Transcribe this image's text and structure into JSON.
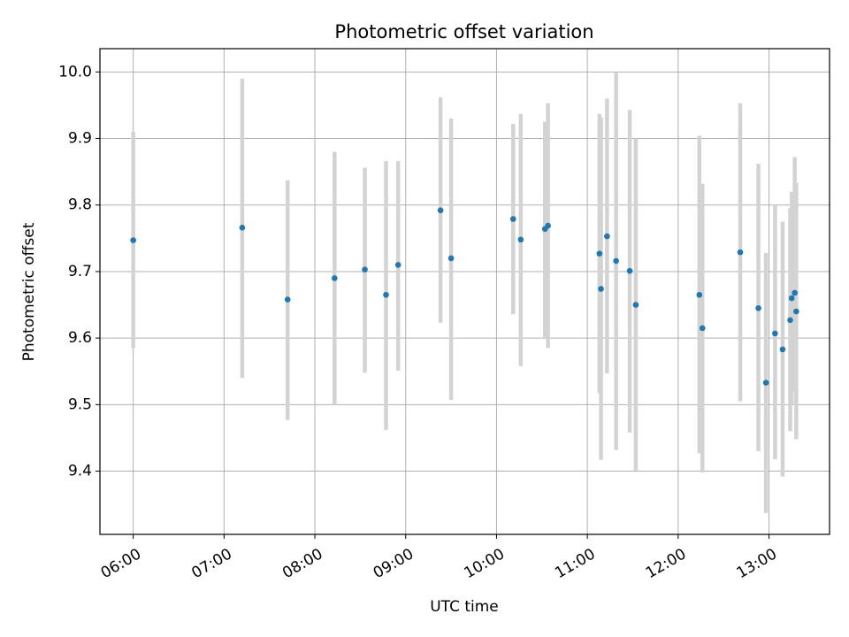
{
  "chart_data": {
    "type": "scatter",
    "title": "Photometric offset variation",
    "xlabel": "UTC time",
    "ylabel": "Photometric offset",
    "x_ticks": [
      "06:00",
      "07:00",
      "08:00",
      "09:00",
      "10:00",
      "11:00",
      "12:00",
      "13:00"
    ],
    "y_ticks": [
      "9.4",
      "9.5",
      "9.6",
      "9.7",
      "9.8",
      "9.9",
      "10.0"
    ],
    "xlim": [
      "05:38",
      "13:40"
    ],
    "ylim": [
      9.305,
      10.035
    ],
    "grid": true,
    "colors": {
      "point": "#1f77b4",
      "errorbar": "#d3d3d3",
      "grid": "#b0b0b0"
    },
    "points": [
      {
        "x": "06:00",
        "y": 9.747,
        "ylow": 9.585,
        "yhigh": 9.91
      },
      {
        "x": "07:12",
        "y": 9.766,
        "ylow": 9.54,
        "yhigh": 9.99
      },
      {
        "x": "07:42",
        "y": 9.658,
        "ylow": 9.477,
        "yhigh": 9.837
      },
      {
        "x": "08:13",
        "y": 9.69,
        "ylow": 9.5,
        "yhigh": 9.88
      },
      {
        "x": "08:33",
        "y": 9.703,
        "ylow": 9.548,
        "yhigh": 9.856
      },
      {
        "x": "08:47",
        "y": 9.665,
        "ylow": 9.462,
        "yhigh": 9.866
      },
      {
        "x": "08:55",
        "y": 9.71,
        "ylow": 9.551,
        "yhigh": 9.866
      },
      {
        "x": "09:23",
        "y": 9.792,
        "ylow": 9.623,
        "yhigh": 9.962
      },
      {
        "x": "09:30",
        "y": 9.72,
        "ylow": 9.507,
        "yhigh": 9.93
      },
      {
        "x": "10:11",
        "y": 9.779,
        "ylow": 9.636,
        "yhigh": 9.922
      },
      {
        "x": "10:16",
        "y": 9.748,
        "ylow": 9.558,
        "yhigh": 9.937
      },
      {
        "x": "10:32",
        "y": 9.764,
        "ylow": 9.6,
        "yhigh": 9.925
      },
      {
        "x": "10:34",
        "y": 9.769,
        "ylow": 9.585,
        "yhigh": 9.953
      },
      {
        "x": "11:08",
        "y": 9.727,
        "ylow": 9.517,
        "yhigh": 9.937
      },
      {
        "x": "11:09",
        "y": 9.674,
        "ylow": 9.417,
        "yhigh": 9.932
      },
      {
        "x": "11:13",
        "y": 9.753,
        "ylow": 9.547,
        "yhigh": 9.96
      },
      {
        "x": "11:19",
        "y": 9.716,
        "ylow": 9.432,
        "yhigh": 10.0
      },
      {
        "x": "11:28",
        "y": 9.701,
        "ylow": 9.458,
        "yhigh": 9.943
      },
      {
        "x": "11:32",
        "y": 9.65,
        "ylow": 9.401,
        "yhigh": 9.9
      },
      {
        "x": "12:14",
        "y": 9.665,
        "ylow": 9.427,
        "yhigh": 9.904
      },
      {
        "x": "12:16",
        "y": 9.615,
        "ylow": 9.398,
        "yhigh": 9.832
      },
      {
        "x": "12:41",
        "y": 9.729,
        "ylow": 9.505,
        "yhigh": 9.953
      },
      {
        "x": "12:53",
        "y": 9.645,
        "ylow": 9.43,
        "yhigh": 9.862
      },
      {
        "x": "12:58",
        "y": 9.533,
        "ylow": 9.337,
        "yhigh": 9.728
      },
      {
        "x": "13:04",
        "y": 9.607,
        "ylow": 9.418,
        "yhigh": 9.8
      },
      {
        "x": "13:09",
        "y": 9.583,
        "ylow": 9.392,
        "yhigh": 9.775
      },
      {
        "x": "13:14",
        "y": 9.627,
        "ylow": 9.46,
        "yhigh": 9.795
      },
      {
        "x": "13:15",
        "y": 9.66,
        "ylow": 9.5,
        "yhigh": 9.82
      },
      {
        "x": "13:17",
        "y": 9.668,
        "ylow": 9.52,
        "yhigh": 9.872
      },
      {
        "x": "13:18",
        "y": 9.64,
        "ylow": 9.448,
        "yhigh": 9.833
      }
    ]
  }
}
